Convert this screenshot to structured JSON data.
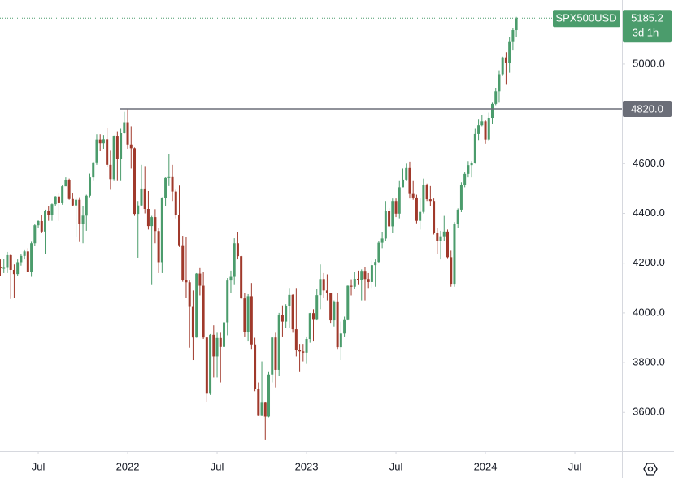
{
  "chart_data": {
    "type": "candlestick",
    "symbol": "SPX500USD",
    "countdown": "3d 1h",
    "hline": {
      "value": 4820,
      "label": "4820.0"
    },
    "up_color": "#4b9c6c",
    "down_color": "#a0392b",
    "ylim": [
      3444,
      5258
    ],
    "yticks": [
      {
        "value": 3600,
        "label": "3600.0"
      },
      {
        "value": 3800,
        "label": "3800.0"
      },
      {
        "value": 4000,
        "label": "4000.0"
      },
      {
        "value": 4200,
        "label": "4200.0"
      },
      {
        "value": 4400,
        "label": "4400.0"
      },
      {
        "value": 4600,
        "label": "4600.0"
      },
      {
        "value": 5000,
        "label": "5000.0"
      }
    ],
    "xlim": [
      -0.12,
      180.7
    ],
    "xticks": [
      {
        "value": 11,
        "label": "Jul"
      },
      {
        "value": 37,
        "label": "2022"
      },
      {
        "value": 63,
        "label": "Jul"
      },
      {
        "value": 89,
        "label": "2023"
      },
      {
        "value": 115,
        "label": "Jul"
      },
      {
        "value": 141,
        "label": "2024"
      },
      {
        "value": 167,
        "label": "Jul"
      }
    ],
    "open": [
      4185,
      4180,
      4181,
      4232,
      4173,
      4156,
      4204,
      4229,
      4247,
      4166,
      4280,
      4352,
      4369,
      4327,
      4411,
      4395,
      4437,
      4468,
      4441,
      4509,
      4535,
      4458,
      4432,
      4455,
      4357,
      4391,
      4471,
      4545,
      4605,
      4697,
      4682,
      4698,
      4595,
      4538,
      4712,
      4620,
      4725,
      4766,
      4677,
      4662,
      4398,
      4432,
      4500,
      4418,
      4349,
      4385,
      4329,
      4204,
      4463,
      4543,
      4546,
      4488,
      4392,
      4272,
      4132,
      4123,
      4024,
      3901,
      4158,
      4109,
      3901,
      3675,
      3912,
      3825,
      3899,
      3863,
      3962,
      4130,
      4145,
      4280,
      4228,
      4058,
      3924,
      4067,
      3873,
      3693,
      3586,
      3639,
      3583,
      3752,
      3901,
      3771,
      3993,
      3965,
      4026,
      4072,
      3934,
      3852,
      3845,
      3840,
      3895,
      3999,
      3972,
      4071,
      4136,
      4090,
      4079,
      3970,
      4046,
      3862,
      3917,
      3971,
      4109,
      4105,
      4137,
      4133,
      4169,
      4136,
      4124,
      4192,
      4205,
      4282,
      4299,
      4409,
      4348,
      4450,
      4399,
      4505,
      4536,
      4582,
      4478,
      4464,
      4370,
      4406,
      4515,
      4457,
      4450,
      4320,
      4288,
      4308,
      4327,
      4224,
      4117,
      4358,
      4415,
      4514,
      4559,
      4594,
      4604,
      4719,
      4754,
      4770,
      4697,
      4784,
      4840,
      4891,
      4959,
      5027,
      5006,
      5089,
      5137
    ],
    "high": [
      4215,
      4218,
      4245,
      4238,
      4195,
      4215,
      4235,
      4255,
      4260,
      4286,
      4356,
      4372,
      4393,
      4415,
      4430,
      4440,
      4470,
      4480,
      4513,
      4545,
      4540,
      4480,
      4465,
      4465,
      4430,
      4475,
      4560,
      4608,
      4718,
      4718,
      4715,
      4745,
      4652,
      4713,
      4730,
      4740,
      4808,
      4818,
      4750,
      4665,
      4450,
      4595,
      4590,
      4490,
      4390,
      4417,
      4340,
      4465,
      4545,
      4637,
      4595,
      4495,
      4512,
      4310,
      4305,
      4130,
      4090,
      4160,
      4180,
      4165,
      3905,
      3915,
      3950,
      3920,
      3920,
      4010,
      4140,
      4170,
      4300,
      4325,
      4230,
      4080,
      4075,
      4120,
      3900,
      3720,
      3805,
      3640,
      3765,
      3905,
      3920,
      4000,
      4030,
      4035,
      4100,
      4075,
      4100,
      3875,
      3875,
      3905,
      4000,
      4015,
      4095,
      4195,
      4160,
      4155,
      4080,
      4050,
      4080,
      3965,
      3985,
      4110,
      4135,
      4165,
      4170,
      4175,
      4185,
      4160,
      4210,
      4215,
      4290,
      4325,
      4450,
      4420,
      4460,
      4460,
      4530,
      4580,
      4600,
      4608,
      4530,
      4475,
      4460,
      4540,
      4520,
      4510,
      4460,
      4340,
      4330,
      4390,
      4335,
      4250,
      4365,
      4420,
      4525,
      4565,
      4610,
      4610,
      4740,
      4780,
      4795,
      4775,
      4805,
      4845,
      4905,
      4975,
      5030,
      5048,
      5110,
      5145,
      5190
    ],
    "low": [
      4150,
      4160,
      4160,
      4056,
      4060,
      4150,
      4190,
      4215,
      4165,
      4145,
      4270,
      4340,
      4320,
      4235,
      4370,
      4370,
      4430,
      4370,
      4435,
      4510,
      4455,
      4430,
      4305,
      4285,
      4280,
      4330,
      4465,
      4530,
      4595,
      4650,
      4660,
      4585,
      4495,
      4530,
      4530,
      4530,
      4720,
      4660,
      4580,
      4390,
      4222,
      4430,
      4400,
      4335,
      4115,
      4280,
      4160,
      4160,
      4430,
      4510,
      4450,
      4380,
      4265,
      4125,
      4060,
      3860,
      3810,
      3900,
      4070,
      3895,
      3640,
      3670,
      3740,
      3740,
      3720,
      3830,
      3910,
      4080,
      4115,
      4215,
      4055,
      3905,
      3885,
      3855,
      3685,
      3585,
      3585,
      3490,
      3580,
      3720,
      3700,
      3745,
      3905,
      3940,
      3940,
      3920,
      3825,
      3765,
      3805,
      3795,
      3880,
      3885,
      3970,
      4015,
      4060,
      4050,
      3960,
      3945,
      3855,
      3810,
      3905,
      3970,
      4070,
      4095,
      4115,
      4050,
      4050,
      4100,
      4100,
      4105,
      4200,
      4260,
      4290,
      4345,
      4320,
      4385,
      4380,
      4505,
      4530,
      4460,
      4455,
      4360,
      4335,
      4400,
      4450,
      4430,
      4315,
      4235,
      4215,
      4290,
      4220,
      4105,
      4105,
      4340,
      4405,
      4505,
      4545,
      4545,
      4600,
      4695,
      4750,
      4680,
      4690,
      4760,
      4835,
      4845,
      4955,
      4920,
      4965,
      5055,
      5110
    ],
    "close": [
      4180,
      4181,
      4232,
      4173,
      4156,
      4204,
      4229,
      4247,
      4166,
      4280,
      4352,
      4369,
      4327,
      4411,
      4395,
      4437,
      4468,
      4441,
      4509,
      4535,
      4458,
      4432,
      4455,
      4357,
      4391,
      4471,
      4545,
      4605,
      4697,
      4682,
      4698,
      4595,
      4538,
      4712,
      4620,
      4725,
      4766,
      4677,
      4662,
      4398,
      4432,
      4500,
      4418,
      4349,
      4385,
      4329,
      4204,
      4463,
      4543,
      4546,
      4488,
      4392,
      4272,
      4132,
      4123,
      4024,
      3901,
      4158,
      4109,
      3901,
      3675,
      3912,
      3825,
      3899,
      3863,
      3962,
      4130,
      4145,
      4280,
      4228,
      4058,
      3924,
      4067,
      3873,
      3693,
      3586,
      3639,
      3583,
      3752,
      3901,
      3771,
      3993,
      3965,
      4026,
      4072,
      3934,
      3852,
      3845,
      3840,
      3895,
      3999,
      3972,
      4071,
      4136,
      4090,
      4079,
      3970,
      4046,
      3862,
      3917,
      3971,
      4109,
      4105,
      4137,
      4133,
      4169,
      4136,
      4124,
      4192,
      4205,
      4282,
      4299,
      4409,
      4348,
      4450,
      4399,
      4505,
      4536,
      4582,
      4478,
      4464,
      4370,
      4406,
      4515,
      4457,
      4450,
      4320,
      4288,
      4308,
      4327,
      4224,
      4117,
      4358,
      4415,
      4514,
      4559,
      4594,
      4604,
      4719,
      4754,
      4770,
      4697,
      4784,
      4840,
      4891,
      4959,
      5027,
      5006,
      5089,
      5137,
      5185.2
    ]
  }
}
